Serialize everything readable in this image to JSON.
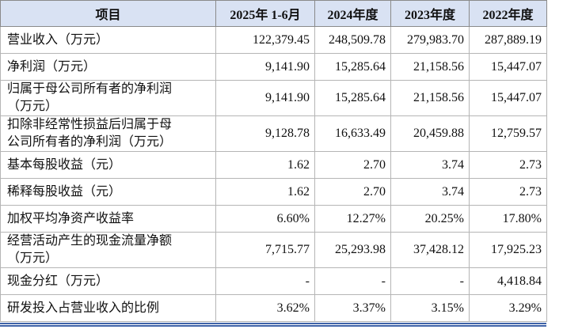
{
  "table": {
    "header": [
      "项目",
      "2025年 1-6月",
      "2024年度",
      "2023年度",
      "2022年度"
    ],
    "rows": [
      {
        "label": [
          "营业收入（万元）"
        ],
        "values": [
          "122,379.45",
          "248,509.78",
          "279,983.70",
          "287,889.19"
        ]
      },
      {
        "label": [
          "净利润（万元）"
        ],
        "values": [
          "9,141.90",
          "15,285.64",
          "21,158.56",
          "15,447.07"
        ]
      },
      {
        "label": [
          "归属于母公司所有者的净利润",
          "（万元）"
        ],
        "values": [
          "9,141.90",
          "15,285.64",
          "21,158.56",
          "15,447.07"
        ]
      },
      {
        "label": [
          "扣除非经常性损益后归属于母",
          "公司所有者的净利润（万元）"
        ],
        "values": [
          "9,128.78",
          "16,633.49",
          "20,459.88",
          "12,759.57"
        ]
      },
      {
        "label": [
          "基本每股收益（元）"
        ],
        "values": [
          "1.62",
          "2.70",
          "3.74",
          "2.73"
        ]
      },
      {
        "label": [
          "稀释每股收益（元）"
        ],
        "values": [
          "1.62",
          "2.70",
          "3.74",
          "2.73"
        ]
      },
      {
        "label": [
          "加权平均净资产收益率"
        ],
        "values": [
          "6.60%",
          "12.27%",
          "20.25%",
          "17.80%"
        ]
      },
      {
        "label": [
          "经营活动产生的现金流量净额",
          "（万元）"
        ],
        "values": [
          "7,715.77",
          "25,293.98",
          "37,428.12",
          "17,925.23"
        ]
      },
      {
        "label": [
          "现金分红（万元）"
        ],
        "values": [
          "-",
          "-",
          "-",
          "4,418.84"
        ]
      },
      {
        "label": [
          "研发投入占营业收入的比例"
        ],
        "values": [
          "3.62%",
          "3.37%",
          "3.15%",
          "3.29%"
        ]
      }
    ]
  }
}
